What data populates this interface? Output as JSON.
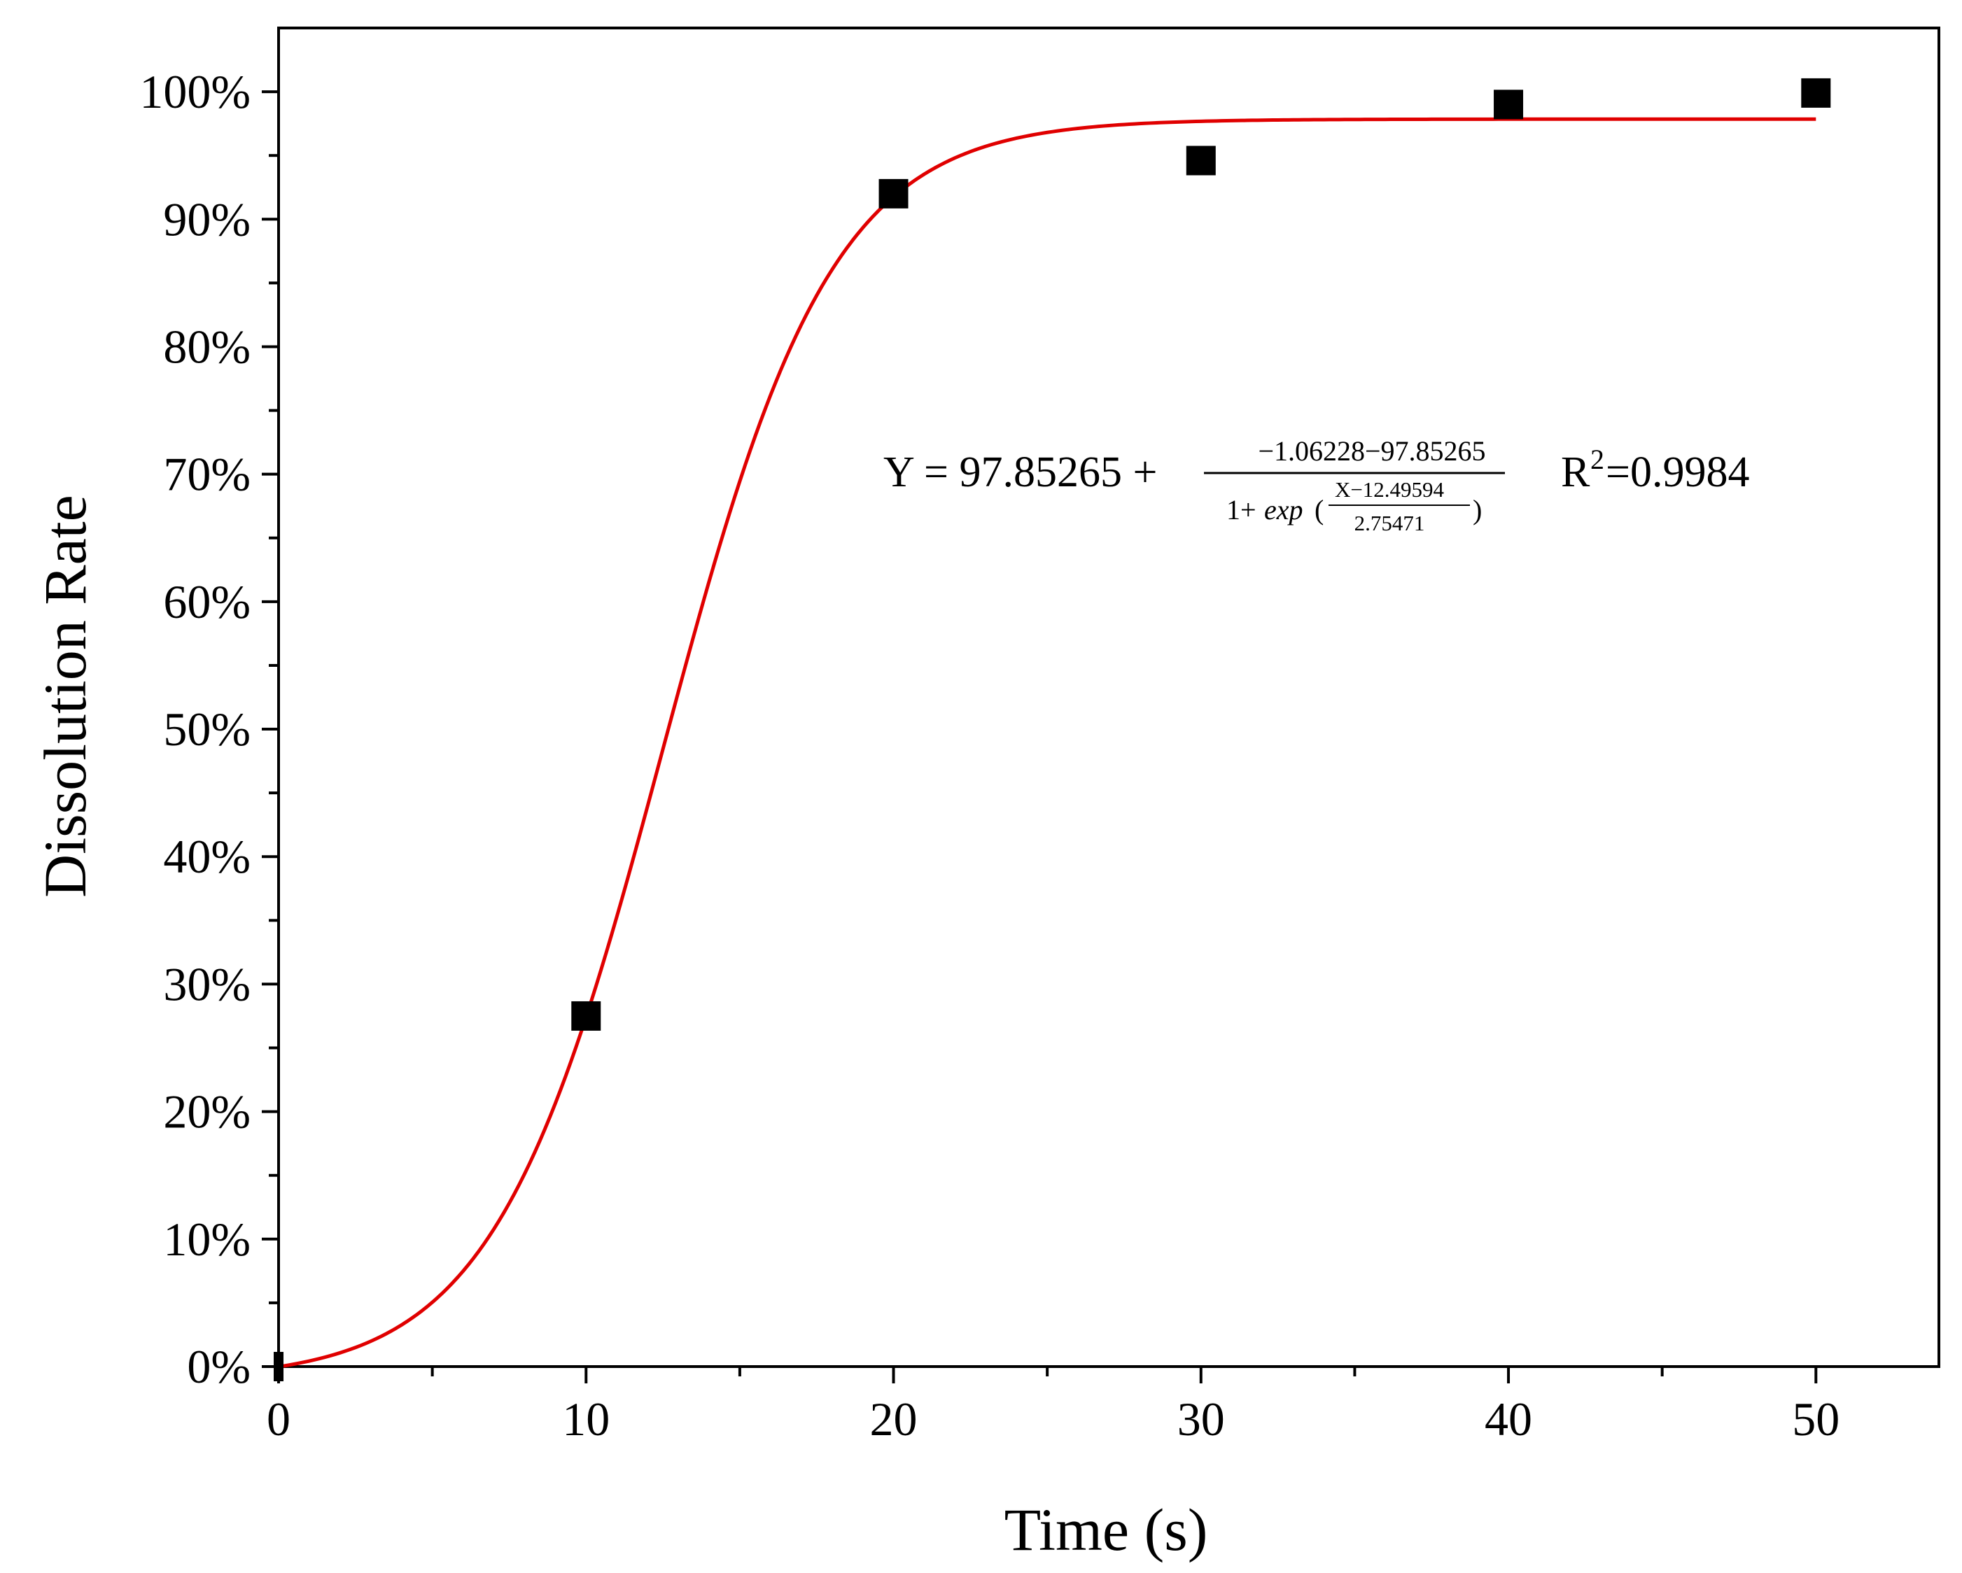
{
  "chart_data": {
    "type": "scatter",
    "title": "",
    "xlabel": "Time (s)",
    "ylabel": "Dissolution Rate",
    "xlim": [
      0,
      54
    ],
    "ylim": [
      0,
      105
    ],
    "x_ticks": [
      0,
      10,
      20,
      30,
      40,
      50
    ],
    "x_tick_labels": [
      "0",
      "10",
      "20",
      "30",
      "40",
      "50"
    ],
    "x_minor_ticks": [
      5,
      15,
      25,
      35,
      45
    ],
    "y_ticks": [
      0,
      10,
      20,
      30,
      40,
      50,
      60,
      70,
      80,
      90,
      100
    ],
    "y_tick_labels": [
      "0%",
      "10%",
      "20%",
      "30%",
      "40%",
      "50%",
      "60%",
      "70%",
      "80%",
      "90%",
      "100%"
    ],
    "y_minor_ticks": [
      5,
      15,
      25,
      35,
      45,
      55,
      65,
      75,
      85,
      95
    ],
    "grid": false,
    "series": [
      {
        "name": "Measured",
        "kind": "scatter",
        "marker": "square",
        "color": "#000000",
        "x": [
          0,
          10,
          20,
          30,
          40,
          50
        ],
        "y": [
          0,
          27.5,
          92,
          94.6,
          99,
          99.9
        ]
      },
      {
        "name": "Fit",
        "kind": "line",
        "color": "#e00000",
        "model": "boltzmann",
        "A1": -1.06228,
        "A2": 97.85265,
        "x0": 12.49594,
        "dx": 2.75471,
        "x_range": [
          0,
          50
        ]
      }
    ],
    "annotations": {
      "equation_lhs": "Y = 97.85265 +",
      "equation_numerator": "−1.06228−97.85265",
      "equation_den_prefix": "1+",
      "equation_den_exp": "exp",
      "equation_den_open": "(",
      "equation_den_frac_num": "X−12.49594",
      "equation_den_frac_den": "2.75471",
      "equation_den_close": ")",
      "r2_label": "R",
      "r2_superscript": "2",
      "r2_value": "=0.9984"
    }
  }
}
